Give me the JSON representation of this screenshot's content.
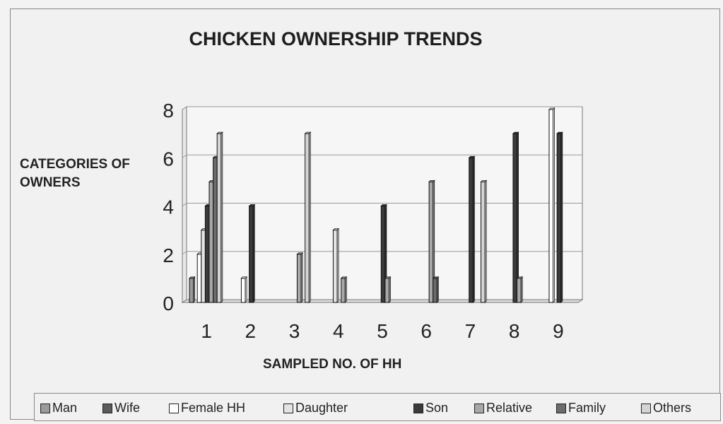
{
  "chart_data": {
    "type": "bar",
    "title": "CHICKEN OWNERSHIP TRENDS",
    "xlabel": "SAMPLED NO. OF HH",
    "ylabel": "CATEGORIES OF OWNERS",
    "categories": [
      "1",
      "2",
      "3",
      "4",
      "5",
      "6",
      "7",
      "8",
      "9"
    ],
    "ylim": [
      0,
      8
    ],
    "yticks": [
      0,
      2,
      4,
      6,
      8
    ],
    "grid": true,
    "legend_position": "bottom",
    "series": [
      {
        "name": "Man",
        "color": "#9a9a9a",
        "values": [
          1,
          0,
          0,
          0,
          0,
          0,
          0,
          0,
          0
        ]
      },
      {
        "name": "Wife",
        "color": "#5a5a5a",
        "values": [
          0,
          0,
          0,
          0,
          0,
          0,
          0,
          0,
          0
        ]
      },
      {
        "name": "Female HH",
        "color": "#ffffff",
        "values": [
          2,
          1,
          0,
          0,
          0,
          0,
          0,
          0,
          8
        ]
      },
      {
        "name": "Daughter",
        "color": "#e4e4e4",
        "values": [
          3,
          0,
          0,
          3,
          0,
          0,
          0,
          0,
          0
        ]
      },
      {
        "name": "Son",
        "color": "#3a3a3a",
        "values": [
          4,
          4,
          0,
          0,
          4,
          0,
          6,
          7,
          7
        ]
      },
      {
        "name": "Relative",
        "color": "#a8a8a8",
        "values": [
          5,
          0,
          2,
          1,
          1,
          5,
          0,
          1,
          0
        ]
      },
      {
        "name": "Family",
        "color": "#6c6c6c",
        "values": [
          6,
          0,
          0,
          0,
          0,
          1,
          0,
          0,
          0
        ]
      },
      {
        "name": "Others",
        "color": "#d4d4d4",
        "values": [
          7,
          0,
          7,
          0,
          0,
          0,
          5,
          0,
          0
        ]
      }
    ]
  }
}
